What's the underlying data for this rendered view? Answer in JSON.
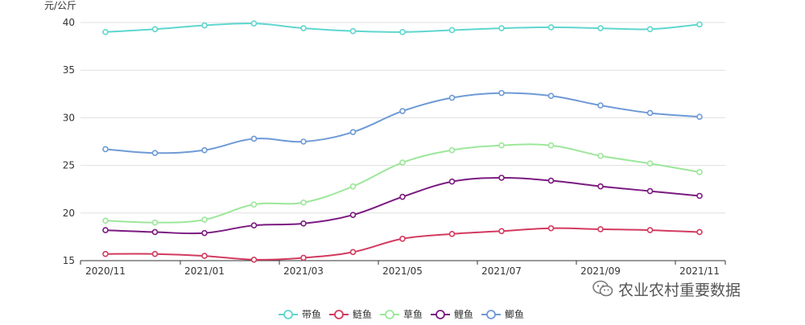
{
  "chart_data": {
    "type": "line",
    "ylabel": "元/公斤",
    "x": [
      "2020/11",
      "2020/12",
      "2021/01",
      "2021/02",
      "2021/03",
      "2021/04",
      "2021/05",
      "2021/06",
      "2021/07",
      "2021/08",
      "2021/09",
      "2021/10",
      "2021/11"
    ],
    "x_tick_labels": [
      "2020/11",
      "2021/01",
      "2021/03",
      "2021/05",
      "2021/07",
      "2021/09",
      "2021/11"
    ],
    "y_ticks": [
      15,
      20,
      25,
      30,
      35,
      40
    ],
    "ylim": [
      15,
      40
    ],
    "grid": true,
    "smooth": true,
    "legend_position": "bottom-center",
    "series": [
      {
        "name": "带鱼",
        "color": "#5fd6cf",
        "values": [
          39.0,
          39.3,
          39.7,
          39.9,
          39.4,
          39.1,
          39.0,
          39.2,
          39.4,
          39.5,
          39.4,
          39.3,
          39.8
        ]
      },
      {
        "name": "鲢鱼",
        "color": "#d33a5f",
        "values": [
          15.7,
          15.7,
          15.5,
          15.1,
          15.3,
          15.9,
          17.3,
          17.8,
          18.1,
          18.4,
          18.3,
          18.2,
          18.0
        ]
      },
      {
        "name": "草鱼",
        "color": "#9ce79a",
        "values": [
          19.2,
          19.0,
          19.3,
          20.9,
          21.1,
          22.8,
          25.3,
          26.6,
          27.1,
          27.1,
          26.0,
          25.2,
          24.3
        ]
      },
      {
        "name": "鲤鱼",
        "color": "#7b1a80",
        "values": [
          18.2,
          18.0,
          17.9,
          18.7,
          18.9,
          19.8,
          21.7,
          23.3,
          23.7,
          23.4,
          22.8,
          22.3,
          21.8
        ]
      },
      {
        "name": "鲫鱼",
        "color": "#6e9ad6",
        "values": [
          26.7,
          26.3,
          26.6,
          27.8,
          27.5,
          28.5,
          30.7,
          32.1,
          32.6,
          32.3,
          31.3,
          30.5,
          30.1
        ]
      }
    ]
  },
  "watermark": {
    "text": "农业农村重要数据",
    "icon": "wechat-icon"
  }
}
